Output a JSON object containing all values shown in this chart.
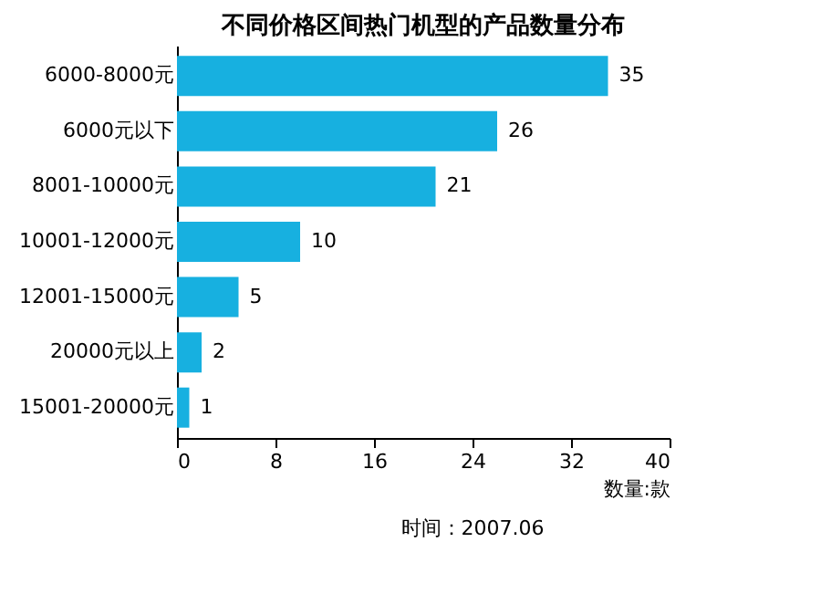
{
  "chart_data": {
    "type": "bar",
    "orientation": "horizontal",
    "title": "不同价格区间热门机型的产品数量分布",
    "xlabel": "数量:款",
    "categories": [
      "6000-8000元",
      "6000元以下",
      "8001-10000元",
      "10001-12000元",
      "12001-15000元",
      "20000元以上",
      "15001-20000元"
    ],
    "values": [
      35,
      26,
      21,
      10,
      5,
      2,
      1
    ],
    "color": "#17b0e0",
    "xlim": [
      0,
      40
    ],
    "xticks": [
      0,
      8,
      16,
      24,
      32,
      40
    ],
    "grid": false,
    "data_labels": true,
    "annotations": [
      "时间：2007.06"
    ]
  }
}
